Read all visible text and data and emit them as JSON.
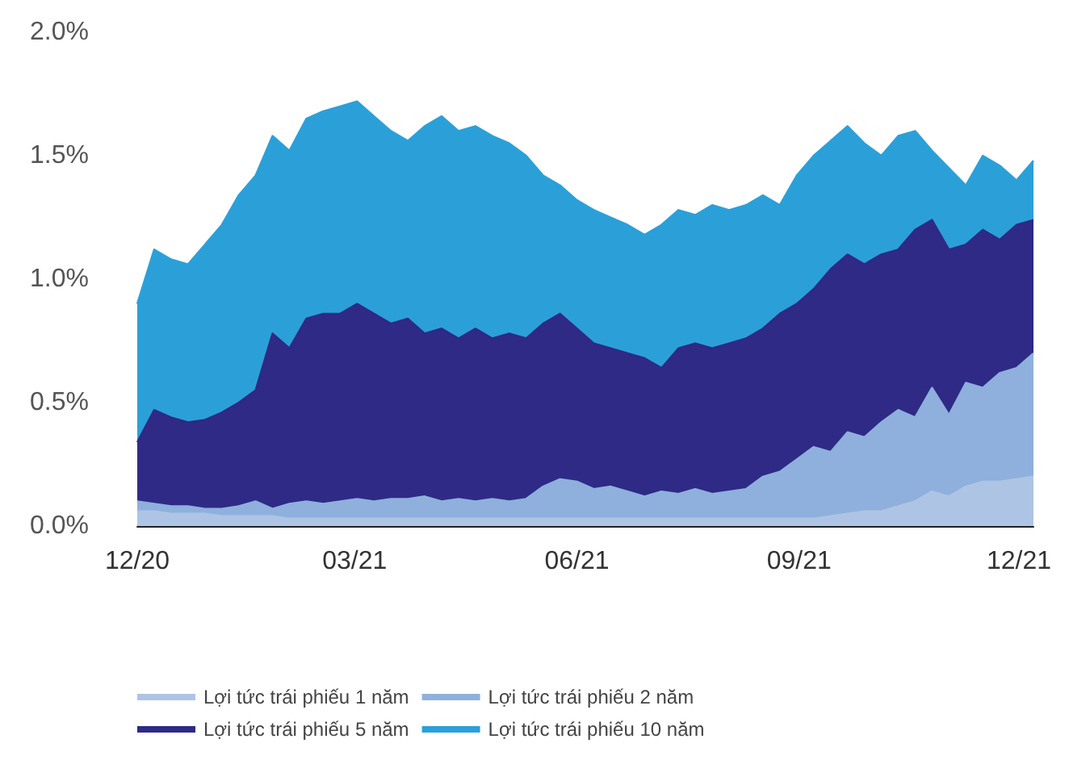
{
  "chart_data": {
    "type": "area",
    "legend": "bottom",
    "grid": false,
    "marker": "none",
    "xlim": [
      "2020-12-01",
      "2021-12-07"
    ],
    "xticks": [
      {
        "value": "2020-12-01",
        "label": "12/20"
      },
      {
        "value": "2021-03-01",
        "label": "03/21"
      },
      {
        "value": "2021-06-01",
        "label": "06/21"
      },
      {
        "value": "2021-09-01",
        "label": "09/21"
      },
      {
        "value": "2021-12-01",
        "label": "12/21"
      }
    ],
    "ylim": [
      0,
      2
    ],
    "yticks": [
      {
        "value": 0,
        "label": "0.0%"
      },
      {
        "value": 0.5,
        "label": "0.5%"
      },
      {
        "value": 1,
        "label": "1.0%"
      },
      {
        "value": 1.5,
        "label": "1.5%"
      },
      {
        "value": 2,
        "label": "2.0%"
      }
    ],
    "x": [
      "2020-12-01",
      "2020-12-08",
      "2020-12-15",
      "2020-12-22",
      "2020-12-29",
      "2021-01-05",
      "2021-01-12",
      "2021-01-19",
      "2021-01-26",
      "2021-02-02",
      "2021-02-09",
      "2021-02-16",
      "2021-02-23",
      "2021-03-02",
      "2021-03-09",
      "2021-03-16",
      "2021-03-23",
      "2021-03-30",
      "2021-04-06",
      "2021-04-13",
      "2021-04-20",
      "2021-04-27",
      "2021-05-04",
      "2021-05-11",
      "2021-05-18",
      "2021-05-25",
      "2021-06-01",
      "2021-06-08",
      "2021-06-15",
      "2021-06-22",
      "2021-06-29",
      "2021-07-06",
      "2021-07-13",
      "2021-07-20",
      "2021-07-27",
      "2021-08-03",
      "2021-08-10",
      "2021-08-17",
      "2021-08-24",
      "2021-08-31",
      "2021-09-07",
      "2021-09-14",
      "2021-09-21",
      "2021-09-28",
      "2021-10-05",
      "2021-10-12",
      "2021-10-19",
      "2021-10-26",
      "2021-11-02",
      "2021-11-09",
      "2021-11-16",
      "2021-11-23",
      "2021-11-30",
      "2021-12-07"
    ],
    "series": [
      {
        "name": "Lợi tức trái phiếu 1 năm",
        "color": "#aec4e4",
        "values": [
          0.06,
          0.06,
          0.05,
          0.05,
          0.05,
          0.04,
          0.04,
          0.04,
          0.04,
          0.03,
          0.03,
          0.03,
          0.03,
          0.03,
          0.03,
          0.03,
          0.03,
          0.03,
          0.03,
          0.03,
          0.03,
          0.03,
          0.03,
          0.03,
          0.03,
          0.03,
          0.03,
          0.03,
          0.03,
          0.03,
          0.03,
          0.03,
          0.03,
          0.03,
          0.03,
          0.03,
          0.03,
          0.03,
          0.03,
          0.03,
          0.03,
          0.04,
          0.05,
          0.06,
          0.06,
          0.08,
          0.1,
          0.14,
          0.12,
          0.16,
          0.18,
          0.18,
          0.19,
          0.2
        ]
      },
      {
        "name": "Lợi tức trái phiếu 2 năm",
        "color": "#8fb0dc",
        "values": [
          0.1,
          0.09,
          0.08,
          0.08,
          0.07,
          0.07,
          0.08,
          0.1,
          0.07,
          0.09,
          0.1,
          0.09,
          0.1,
          0.11,
          0.1,
          0.11,
          0.11,
          0.12,
          0.1,
          0.11,
          0.1,
          0.11,
          0.1,
          0.11,
          0.16,
          0.19,
          0.18,
          0.15,
          0.16,
          0.14,
          0.12,
          0.14,
          0.13,
          0.15,
          0.13,
          0.14,
          0.15,
          0.2,
          0.22,
          0.27,
          0.32,
          0.3,
          0.38,
          0.36,
          0.42,
          0.47,
          0.44,
          0.56,
          0.45,
          0.58,
          0.56,
          0.62,
          0.64,
          0.7
        ]
      },
      {
        "name": "Lợi tức trái phiếu 5 năm",
        "color": "#2e2a86",
        "values": [
          0.34,
          0.47,
          0.44,
          0.42,
          0.43,
          0.46,
          0.5,
          0.55,
          0.78,
          0.72,
          0.84,
          0.86,
          0.86,
          0.9,
          0.86,
          0.82,
          0.84,
          0.78,
          0.8,
          0.76,
          0.8,
          0.76,
          0.78,
          0.76,
          0.82,
          0.86,
          0.8,
          0.74,
          0.72,
          0.7,
          0.68,
          0.64,
          0.72,
          0.74,
          0.72,
          0.74,
          0.76,
          0.8,
          0.86,
          0.9,
          0.96,
          1.04,
          1.1,
          1.06,
          1.1,
          1.12,
          1.2,
          1.24,
          1.12,
          1.14,
          1.2,
          1.16,
          1.22,
          1.24
        ]
      },
      {
        "name": "Lợi tức trái phiếu 10 năm",
        "color": "#2ba0d8",
        "values": [
          0.9,
          1.12,
          1.08,
          1.06,
          1.14,
          1.22,
          1.34,
          1.42,
          1.58,
          1.52,
          1.65,
          1.68,
          1.7,
          1.72,
          1.66,
          1.6,
          1.56,
          1.62,
          1.66,
          1.6,
          1.62,
          1.58,
          1.55,
          1.5,
          1.42,
          1.38,
          1.32,
          1.28,
          1.25,
          1.22,
          1.18,
          1.22,
          1.28,
          1.26,
          1.3,
          1.28,
          1.3,
          1.34,
          1.3,
          1.42,
          1.5,
          1.56,
          1.62,
          1.55,
          1.5,
          1.58,
          1.6,
          1.52,
          1.45,
          1.38,
          1.5,
          1.46,
          1.4,
          1.48
        ]
      }
    ]
  }
}
